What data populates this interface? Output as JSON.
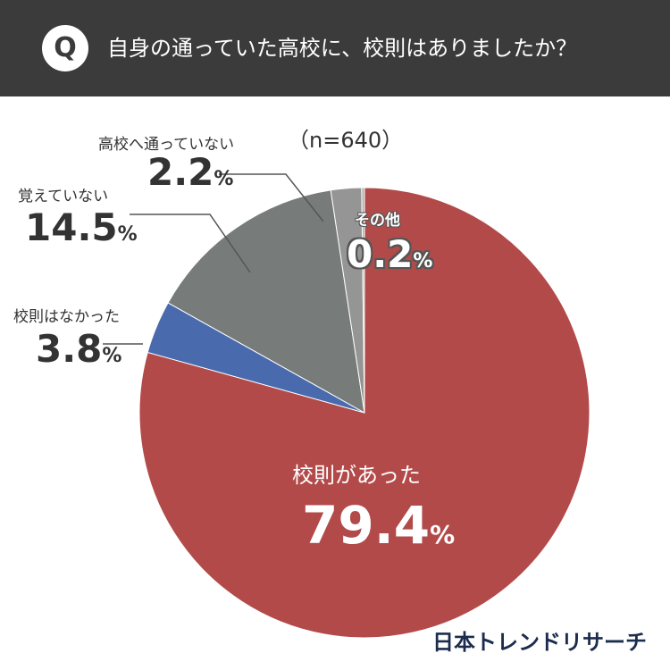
{
  "header": {
    "q_label": "Q",
    "question": "自身の通っていた高校に、校則はありましたか？"
  },
  "sample_size": "（n=640）",
  "chart_data": {
    "type": "pie",
    "unit": "%",
    "slices": [
      {
        "label": "校則があった",
        "value": 79.4,
        "color": "#b34a4a"
      },
      {
        "label": "校則はなかった",
        "value": 3.8,
        "color": "#4a6aae"
      },
      {
        "label": "覚えていない",
        "value": 14.5,
        "color": "#777c7b"
      },
      {
        "label": "高校へ通っていない",
        "value": 2.2,
        "color": "#959595"
      },
      {
        "label": "その他",
        "value": 0.2,
        "color": "#b0b0b0"
      }
    ]
  },
  "labels": {
    "s0": {
      "name": "校則があった",
      "value": "79.4",
      "unit": "%"
    },
    "s1": {
      "name": "校則はなかった",
      "value": "3.8",
      "unit": "%"
    },
    "s2": {
      "name": "覚えていない",
      "value": "14.5",
      "unit": "%"
    },
    "s3": {
      "name": "高校へ通っていない",
      "value": "2.2",
      "unit": "%"
    },
    "s4": {
      "name": "その他",
      "value": "0.2",
      "unit": "%"
    }
  },
  "brand": "日本トレンドリサーチ"
}
